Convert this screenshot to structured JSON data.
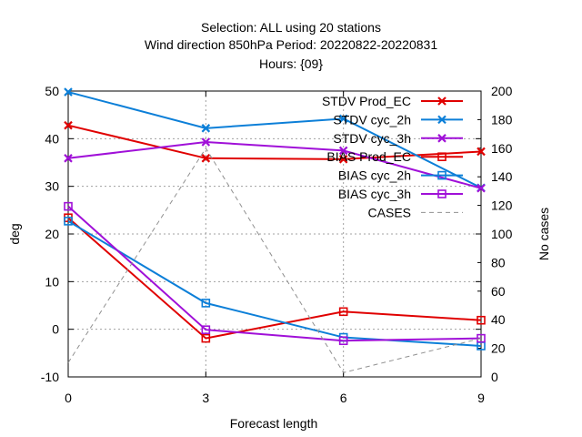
{
  "chart_data": {
    "type": "line",
    "title_lines": [
      "Selection: ALL using    20 stations",
      "Wind direction 850hPa   Period: 20220822-20220831",
      "Hours: {09}"
    ],
    "xlabel": "Forecast length",
    "ylabel": "deg",
    "y2label": "No cases",
    "x": [
      0,
      3,
      6,
      9
    ],
    "xticks": [
      "0",
      "3",
      "6",
      "9"
    ],
    "xlim": [
      0,
      9
    ],
    "ylim": [
      -10,
      50
    ],
    "y2lim": [
      0,
      200
    ],
    "yticks": [
      "-10",
      "0",
      "10",
      "20",
      "30",
      "40",
      "50"
    ],
    "y2ticks": [
      "0",
      "20",
      "40",
      "60",
      "80",
      "100",
      "120",
      "140",
      "160",
      "180",
      "200"
    ],
    "grid": true,
    "legend_position": "top-right",
    "series": [
      {
        "name": "STDV Prod_EC",
        "axis": "y",
        "color": "#e00000",
        "marker": "x",
        "values": [
          42.8,
          35.9,
          35.7,
          37.3
        ]
      },
      {
        "name": "STDV cyc_2h",
        "axis": "y",
        "color": "#0c7fd8",
        "marker": "x",
        "values": [
          49.8,
          42.2,
          44.2,
          29.7
        ]
      },
      {
        "name": "STDV cyc_3h",
        "axis": "y",
        "color": "#a010d8",
        "marker": "x",
        "values": [
          35.9,
          39.3,
          37.5,
          29.6
        ]
      },
      {
        "name": "BIAS Prod_EC",
        "axis": "y",
        "color": "#e00000",
        "marker": "square",
        "values": [
          23.4,
          -1.9,
          3.7,
          1.9
        ]
      },
      {
        "name": "BIAS cyc_2h",
        "axis": "y",
        "color": "#0c7fd8",
        "marker": "square",
        "values": [
          22.7,
          5.5,
          -1.7,
          -3.5
        ]
      },
      {
        "name": "BIAS cyc_3h",
        "axis": "y",
        "color": "#a010d8",
        "marker": "square",
        "values": [
          25.8,
          -0.1,
          -2.4,
          -1.9
        ]
      },
      {
        "name": "CASES",
        "axis": "y2",
        "color": "#909090",
        "marker": "none",
        "dashed": true,
        "values": [
          10,
          160,
          3,
          27
        ]
      }
    ]
  }
}
